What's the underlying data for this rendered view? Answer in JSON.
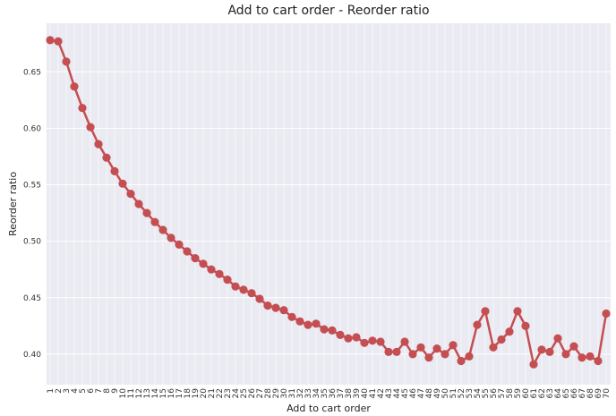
{
  "chart_data": {
    "type": "line",
    "title": "Add to cart order - Reorder ratio",
    "xlabel": "Add to cart order",
    "ylabel": "Reorder ratio",
    "ylim": [
      0.373,
      0.693
    ],
    "yticks": [
      "0.40",
      "0.45",
      "0.50",
      "0.55",
      "0.60",
      "0.65"
    ],
    "grid": true,
    "color": "#c44e52",
    "categories": [
      "1",
      "2",
      "3",
      "4",
      "5",
      "6",
      "7",
      "8",
      "9",
      "10",
      "11",
      "12",
      "13",
      "14",
      "15",
      "16",
      "17",
      "18",
      "19",
      "20",
      "21",
      "22",
      "23",
      "24",
      "25",
      "26",
      "27",
      "28",
      "29",
      "30",
      "31",
      "32",
      "33",
      "34",
      "35",
      "36",
      "37",
      "38",
      "39",
      "40",
      "41",
      "42",
      "43",
      "44",
      "45",
      "46",
      "47",
      "48",
      "49",
      "50",
      "51",
      "52",
      "53",
      "54",
      "55",
      "56",
      "57",
      "58",
      "59",
      "60",
      "61",
      "62",
      "63",
      "64",
      "65",
      "66",
      "67",
      "68",
      "69",
      "70"
    ],
    "series": [
      {
        "values": [
          0.678,
          0.677,
          0.659,
          0.637,
          0.618,
          0.601,
          0.586,
          0.574,
          0.562,
          0.551,
          0.542,
          0.533,
          0.525,
          0.517,
          0.51,
          0.503,
          0.497,
          0.491,
          0.485,
          0.48,
          0.475,
          0.471,
          0.466,
          0.46,
          0.457,
          0.454,
          0.449,
          0.443,
          0.441,
          0.439,
          0.433,
          0.429,
          0.426,
          0.427,
          0.422,
          0.421,
          0.417,
          0.414,
          0.415,
          0.41,
          0.412,
          0.411,
          0.402,
          0.402,
          0.411,
          0.4,
          0.406,
          0.397,
          0.405,
          0.4,
          0.408,
          0.394,
          0.398,
          0.426,
          0.438,
          0.406,
          0.413,
          0.42,
          0.438,
          0.425,
          0.391,
          0.404,
          0.402,
          0.414,
          0.4,
          0.407,
          0.397,
          0.398,
          0.394,
          0.436
        ]
      }
    ]
  }
}
